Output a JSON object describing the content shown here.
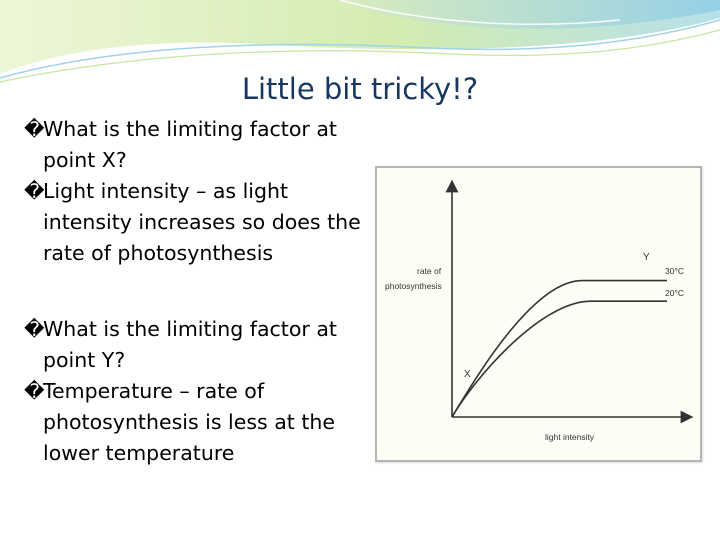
{
  "slide": {
    "title": "Little bit tricky!?",
    "bullet_marker": "�",
    "bullets": [
      {
        "id": "q1",
        "text": "What is the limiting factor at point X?"
      },
      {
        "id": "a1",
        "text": "Light intensity – as light intensity increases so does the rate of photosynthesis"
      },
      {
        "id": "q2",
        "text": "What is the limiting factor at point Y?"
      },
      {
        "id": "a2",
        "text": "Temperature – rate of photosynthesis is less at the lower temperature"
      }
    ]
  },
  "chart_data": {
    "type": "line",
    "title": "",
    "xlabel": "light intensity",
    "ylabel": "rate of photosynthesis",
    "ylabel_lines": [
      "rate of",
      "photosynthesis"
    ],
    "point_labels": {
      "x": "X",
      "y": "Y"
    },
    "series": [
      {
        "name": "30°C",
        "plateau": 0.86
      },
      {
        "name": "20°C",
        "plateau": 0.73
      }
    ],
    "grid": false,
    "colors": {
      "curve": "#333333",
      "axes": "#333333",
      "background": "#fdfcf5"
    }
  },
  "theme": {
    "title_color": "#17375e",
    "decor_colors": [
      "#dcebb4",
      "#9fd3e6",
      "#c8e6a0",
      "#6cb8d8"
    ]
  }
}
